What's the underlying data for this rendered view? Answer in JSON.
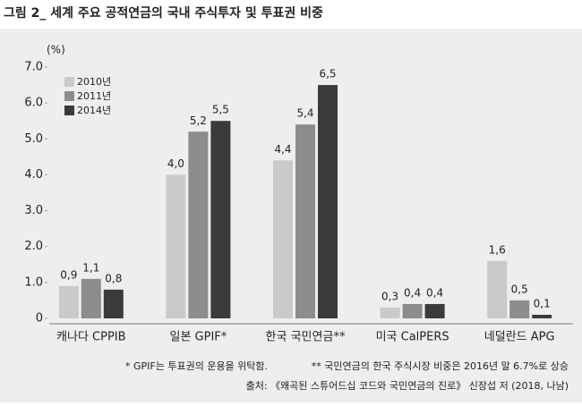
{
  "chart_data": {
    "type": "bar",
    "title": "그림 2_ 세계 주요 공적연금의 국내 주식투자 및 투표권 비중",
    "y_label": "(%)",
    "categories": [
      "캐나다 CPPIB",
      "일본 GPIF*",
      "한국 국민연금**",
      "미국 CalPERS",
      "네덜란드 APG"
    ],
    "series": [
      {
        "name": "2010년",
        "color": "#cacaca",
        "values": [
          0.9,
          4.0,
          4.4,
          0.3,
          1.6
        ],
        "value_labels": [
          "0,9",
          "4,0",
          "4,4",
          "0,3",
          "1,6"
        ]
      },
      {
        "name": "2011년",
        "color": "#8c8c8c",
        "values": [
          1.1,
          5.2,
          5.4,
          0.4,
          0.5
        ],
        "value_labels": [
          "1,1",
          "5,2",
          "5,4",
          "0,4",
          "0,5"
        ]
      },
      {
        "name": "2014년",
        "color": "#3b3b3b",
        "values": [
          0.8,
          5.5,
          6.5,
          0.4,
          0.1
        ],
        "value_labels": [
          "0,8",
          "5,5",
          "6,5",
          "0,4",
          "0,1"
        ]
      }
    ],
    "ylim": [
      0,
      7
    ],
    "yticks": [
      0,
      {
        "value": 1,
        "label": "1.0"
      },
      {
        "value": 2,
        "label": "2.0"
      },
      {
        "value": 3,
        "label": "3.0"
      },
      {
        "value": 4,
        "label": "4.0"
      },
      {
        "value": 5,
        "label": "5.0"
      },
      {
        "value": 6,
        "label": "6.0"
      },
      {
        "value": 7,
        "label": "7.0"
      }
    ],
    "legend": "upper left",
    "notes": [
      "* GPIF는 투표권의 운용을 위탁함.",
      "** 국민연금의 한국 주식시장 비중은 2016년 말 6.7%로 상승"
    ],
    "source": "출처: 《왜곡된 스튜어드십 코드와 국민연금의 진로》 신장섭 저 (2018, 나남)"
  }
}
